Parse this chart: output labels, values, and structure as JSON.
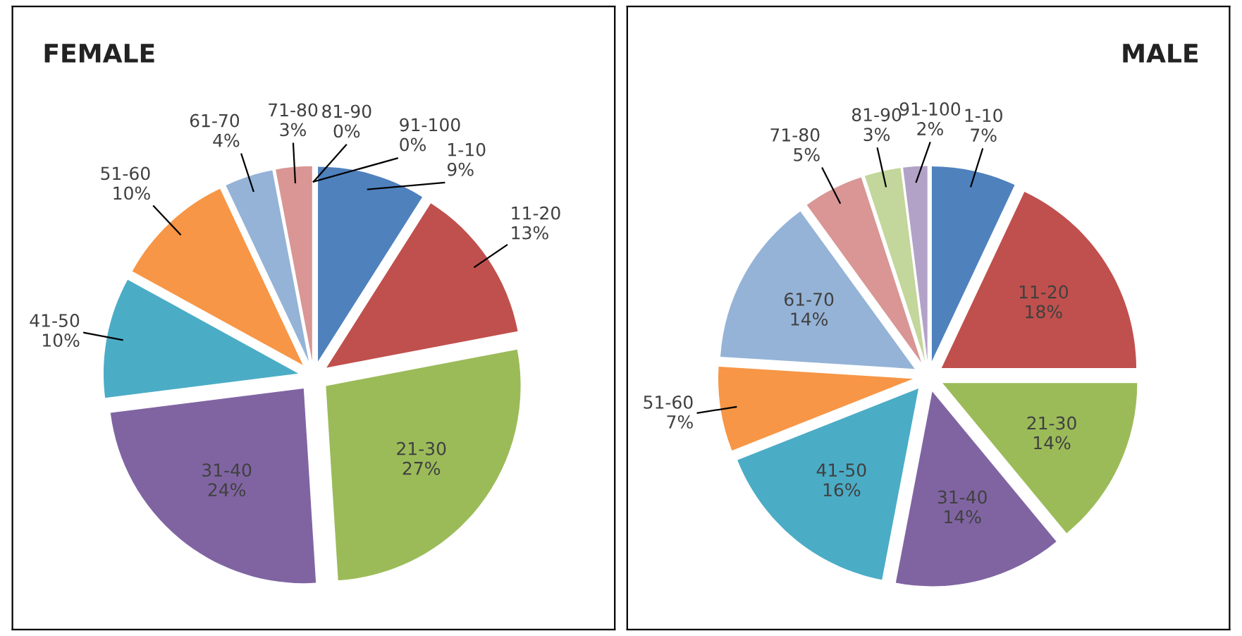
{
  "chart_data": [
    {
      "type": "pie",
      "title": "FEMALE",
      "categories": [
        "1-10",
        "11-20",
        "21-30",
        "31-40",
        "41-50",
        "51-60",
        "61-70",
        "71-80",
        "81-90",
        "91-100"
      ],
      "values": [
        9,
        13,
        27,
        24,
        10,
        10,
        4,
        3,
        0,
        0
      ],
      "value_labels": [
        "9%",
        "13%",
        "27%",
        "24%",
        "10%",
        "10%",
        "4%",
        "3%",
        "0%",
        "0%"
      ],
      "colors": [
        "#4f81bd",
        "#c0504d",
        "#9bbb59",
        "#8064a2",
        "#4bacc6",
        "#f79646",
        "#95b3d7",
        "#d99694",
        "#c3d69b",
        "#b3a2c7"
      ]
    },
    {
      "type": "pie",
      "title": "MALE",
      "categories": [
        "1-10",
        "11-20",
        "21-30",
        "31-40",
        "41-50",
        "51-60",
        "61-70",
        "71-80",
        "81-90",
        "91-100"
      ],
      "values": [
        7,
        18,
        14,
        14,
        16,
        7,
        14,
        5,
        3,
        2
      ],
      "value_labels": [
        "7%",
        "18%",
        "14%",
        "14%",
        "16%",
        "7%",
        "14%",
        "5%",
        "3%",
        "2%"
      ],
      "colors": [
        "#4f81bd",
        "#c0504d",
        "#9bbb59",
        "#8064a2",
        "#4bacc6",
        "#f79646",
        "#95b3d7",
        "#d99694",
        "#c3d69b",
        "#b3a2c7"
      ]
    }
  ]
}
